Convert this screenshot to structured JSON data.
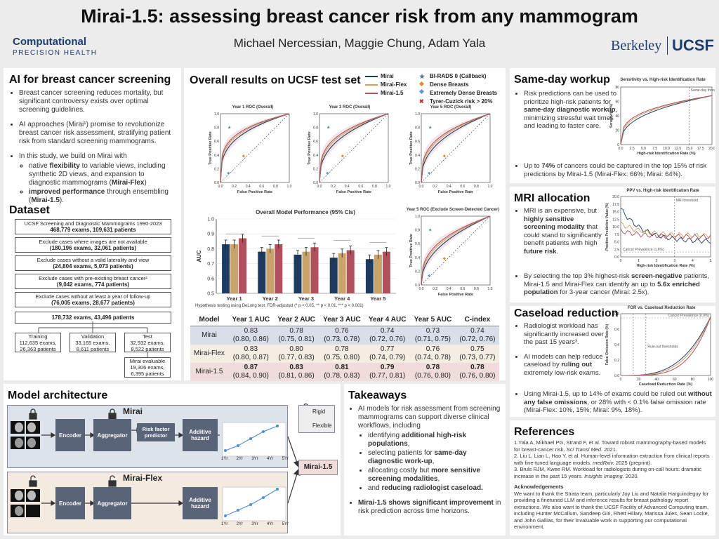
{
  "header": {
    "title": "Mirai-1.5: assessing breast cancer risk from any mammogram",
    "authors": "Michael Nercessian, Maggie Chung, Adam Yala",
    "logo_left_main": "Computational",
    "logo_left_sub": "PRECISION HEALTH",
    "logo_berkeley": "Berkeley",
    "logo_ucsf": "UCSF"
  },
  "ai_section": {
    "heading": "AI for breast cancer screening",
    "b1": "Breast cancer screening reduces mortality, but significant controversy exists over optimal screening guidelines.",
    "b2": "AI approaches (Mirai¹) promise to revolutionize breast cancer risk assessment, stratifying patient risk from standard screening mammograms.",
    "b3": "In this study, we build on Mirai with",
    "sub1_bold": "flexibility",
    "sub1_pre": "native ",
    "sub1_post": " to variable views, including synthetic 2D views, and expansion to diagnostic mammograms (",
    "sub1_name": "Mirai-Flex",
    "sub1_end": ")",
    "sub2_bold": "improved performance",
    "sub2_post": " through ensembling (",
    "sub2_name": "Mirai-1.5",
    "sub2_end": ")."
  },
  "dataset": {
    "heading": "Dataset",
    "steps": [
      {
        "text": "UCSF Screening and Diagnostic Mammograms 1990-2023",
        "bold": "468,779 exams, 109,631 patients"
      },
      {
        "text": "Exclude cases where images are not available",
        "bold": "(180,196 exams, 32,061 patients)"
      },
      {
        "text": "Exclude cases without a valid laterality and view",
        "bold": "(24,804 exams, 5,073 patients)"
      },
      {
        "text": "Exclude cases with pre-existing breast cancer²",
        "bold": "(9,042 exams, 774 patients)"
      },
      {
        "text": "Exclude cases without at least a year of follow-up",
        "bold": "(76,005 exams, 28,677 patients)"
      }
    ],
    "total": "178,732 exams, 43,496 patients",
    "splits": [
      {
        "name": "Training",
        "l1": "112,635 exams,",
        "l2": "26,363 patients"
      },
      {
        "name": "Validation",
        "l1": "33,165 exams,",
        "l2": "8,611 patients"
      },
      {
        "name": "Test",
        "l1": "32,932 exams,",
        "l2": "8,522 patients"
      }
    ],
    "evaluable": {
      "l1": "Mirai evaluable",
      "l2": "19,306 exams,",
      "l3": "6,395 patients"
    }
  },
  "results": {
    "heading": "Overall results on UCSF test set",
    "legend_models": [
      "Mirai",
      "Mirai-Flex",
      "Mirai-1.5"
    ],
    "legend_markers": [
      "BI-RADS 0 (Callback)",
      "Dense Breasts",
      "Extremely Dense Breasts",
      "Tyrer-Cuzick risk > 20%"
    ],
    "roc_titles": [
      "Year 1 ROC (Overall)",
      "Year 3 ROC (Overall)",
      "Year 5 ROC (Overall)",
      "Year 5 ROC (Exclude Screen-Detected Cancer)"
    ],
    "roc_xlabel": "False Positive Rate",
    "roc_ylabel": "True Positive Rate",
    "hypothesis_note": "Hypothesis testing using DeLong test, FDR-adjusted (* p < 0.05, ** p < 0.01, *** p < 0.001)",
    "table": {
      "headers": [
        "Model",
        "Year 1 AUC",
        "Year 2 AUC",
        "Year 3 AUC",
        "Year 4 AUC",
        "Year 5 AUC",
        "C-index"
      ],
      "rows": [
        {
          "model": "Mirai",
          "v": [
            "0.83",
            "0.78",
            "0.76",
            "0.74",
            "0.73",
            "0.74"
          ],
          "ci": [
            "(0.80, 0.86)",
            "(0.75, 0.81)",
            "(0.73, 0.78)",
            "(0.72, 0.76)",
            "(0.71, 0.75)",
            "(0.72, 0.76)"
          ]
        },
        {
          "model": "Mirai-Flex",
          "v": [
            "0.83",
            "0.80",
            "0.78",
            "0.77",
            "0.76",
            "0.75"
          ],
          "ci": [
            "(0.80, 0.87)",
            "(0.77, 0.83)",
            "(0.75, 0.80)",
            "(0.74, 0.79)",
            "(0.74, 0.78)",
            "(0.73, 0.77)"
          ]
        },
        {
          "model": "Mirai-1.5",
          "v": [
            "0.87",
            "0.83",
            "0.81",
            "0.79",
            "0.78",
            "0.78"
          ],
          "ci": [
            "(0.84, 0.90)",
            "(0.81, 0.86)",
            "(0.78, 0.83)",
            "(0.77, 0.81)",
            "(0.76, 0.80)",
            "(0.76, 0.80)"
          ]
        }
      ]
    }
  },
  "chart_data": [
    {
      "type": "bar",
      "title": "Overall Model Performance (95% CIs)",
      "ylabel": "AUC",
      "categories": [
        "Year 1",
        "Year 2",
        "Year 3",
        "Year 4",
        "Year 5"
      ],
      "ylim": [
        0.5,
        1.0
      ],
      "yticks": [
        "0.5",
        "0.6",
        "0.7",
        "0.8",
        "0.9",
        "1.0"
      ],
      "series": [
        {
          "name": "Mirai",
          "values": [
            0.83,
            0.78,
            0.76,
            0.74,
            0.73
          ]
        },
        {
          "name": "Mirai-Flex",
          "values": [
            0.83,
            0.8,
            0.78,
            0.77,
            0.76
          ]
        },
        {
          "name": "Mirai-1.5",
          "values": [
            0.87,
            0.83,
            0.81,
            0.79,
            0.78
          ]
        }
      ],
      "colors": [
        "#1f3a5f",
        "#c8a46a",
        "#b0505c"
      ]
    }
  ],
  "model_arch": {
    "heading": "Model architecture",
    "mirai_label": "Mirai",
    "flex_label": "Mirai-Flex",
    "encoder": "Encoder",
    "aggregator": "Aggregator",
    "rf": "Risk factor predictor",
    "hazard": "Additive hazard",
    "years": [
      "1Yr",
      "2Yr",
      "3Yr",
      "4Yr",
      "5Yr"
    ],
    "rigid": "Rigid",
    "flexible": "Flexible",
    "output": "Mirai-1.5"
  },
  "takeaways": {
    "heading": "Takeaways",
    "intro": "AI models for risk assessment from screening mammograms can support diverse clinical workflows, including",
    "items": [
      {
        "pre": "identifying ",
        "bold": "additional high-risk populations",
        "post": ","
      },
      {
        "pre": "selecting patients for ",
        "bold": "same-day diagnostic work-up",
        "post": ","
      },
      {
        "pre": "allocating costly but ",
        "bold": "more sensitive screening modalities",
        "post": ","
      },
      {
        "pre": "and ",
        "bold": "reducing radiologist caseload.",
        "post": ""
      }
    ],
    "final_bold": "Mirai-1.5 shows significant improvement",
    "final_post": " in risk prediction across time horizons."
  },
  "sameday": {
    "heading": "Same-day workup",
    "chart_title": "Sensitivity vs. High-risk Identification Rate",
    "ylabel": "Sensitivity (%)",
    "xlabel": "High-risk Identification Rate (%)",
    "threshold": "Same-day threshold",
    "xticks": [
      "0.0",
      "2.5",
      "5.0",
      "7.5",
      "10.0",
      "12.5",
      "15.0",
      "17.5",
      "20.0"
    ],
    "yticks": [
      "0",
      "20",
      "40",
      "60",
      "80"
    ],
    "b1_pre": "Risk predictions can be used to prioritize high-risk patients for ",
    "b1_bold": "same-day diagnostic workup",
    "b1_post": ", minimizing stressful wait times and leading to faster care.",
    "b2_pre": "Up to ",
    "b2_bold": "74%",
    "b2_post": " of cancers could be captured in the top 15% of risk predictions by Mirai-1.5 (Mirai-Flex: 66%; Mirai: 64%)."
  },
  "mri": {
    "heading": "MRI allocation",
    "chart_title": "PPV vs. High-risk Identification Rate",
    "ylabel": "Positive Predictive Value (%)",
    "xlabel": "High-risk Identification Rate (%)",
    "threshold": "MRI threshold",
    "prevalence": "Cancer Prevalence (1.6%)",
    "yticks": [
      "0.0",
      "2.5",
      "5.0",
      "7.5",
      "10.0",
      "12.5",
      "15.0",
      "17.5",
      "20.0"
    ],
    "xticks": [
      "0",
      "1",
      "2",
      "3",
      "4",
      "5"
    ],
    "b1_pre": "MRI is an expensive, but ",
    "b1_bold": "highly sensitive screening modality",
    "b1_mid": " that could stand to significantly benefit patients with high ",
    "b1_bold2": "future risk",
    "b1_post": ".",
    "b2_pre": "By selecting the top 3% highest-risk ",
    "b2_bold": "screen-negative",
    "b2_mid": " patients, Mirai-1.5 and Mirai-Flex can identify an up to ",
    "b2_bold2": "5.6x enriched population",
    "b2_post": " for 3-year cancer (Mirai: 2.5x)."
  },
  "caseload": {
    "heading": "Caseload reduction",
    "chart_title": "FOR vs. Caseload Reduction Rate",
    "ylabel": "False Omission Rate (%)",
    "xlabel": "Caseload Reduction Rate (%)",
    "prevalence": "Cancer Prevalence (0.9%)",
    "ruleout": "Rule-out thresholds",
    "xticks": [
      "0",
      "20",
      "40",
      "60",
      "80",
      "100"
    ],
    "yticks": [
      "0.0",
      "0.2",
      "0.4",
      "0.6",
      "0.8"
    ],
    "b1": "Radiologist workload has significantly increased over the past 15 years³.",
    "b2_pre": "AI models can help reduce caseload by ",
    "b2_bold": "ruling out",
    "b2_post": " extremely low-risk exams.",
    "b3_pre": "Using Mirai-1.5, up to 14% of exams could be ruled out ",
    "b3_bold": "without any false omissions",
    "b3_post": ", or 28% with < 0.1% false omission rate (Mirai-Flex: 10%, 15%; Mirai: 9%, 18%)."
  },
  "references": {
    "heading": "References",
    "r1_pre": "1.Yala A, Mikhael PG, Strand F, et al. Toward robust mammography-based models for breast-cancer risk. ",
    "r1_italic": "Sci Transl Med.",
    "r1_post": " 2021.",
    "r2_pre": "2. Liu L, Lian L, Hao Y, et al. Human-level information extraction from clinical reports with fine-tuned language models. ",
    "r2_italic": "medRxiv.",
    "r2_post": " 2025 (preprint).",
    "r3_pre": "3. Bruls RJM, Kwee RM. Workload for radiologists during on-call hours: dramatic increase in the past 15 years. ",
    "r3_italic": "Insights Imaging.",
    "r3_post": " 2020.",
    "ack_heading": "Acknowledgements",
    "ack": "We want to thank the Strata team, particularly Joy Liu and Natalia Harguindeguy for providing a finetuned LLM and inference results for breast pathology report extractions. We also want to thank the UCSF Facility of Advanced Computing team, including Hunter McCallum, Sandeep Giri, Rhett Hillary, Marissa Jules, Sean Locke, and John Gallias, for their invaluable work in supporting our computational environment."
  }
}
